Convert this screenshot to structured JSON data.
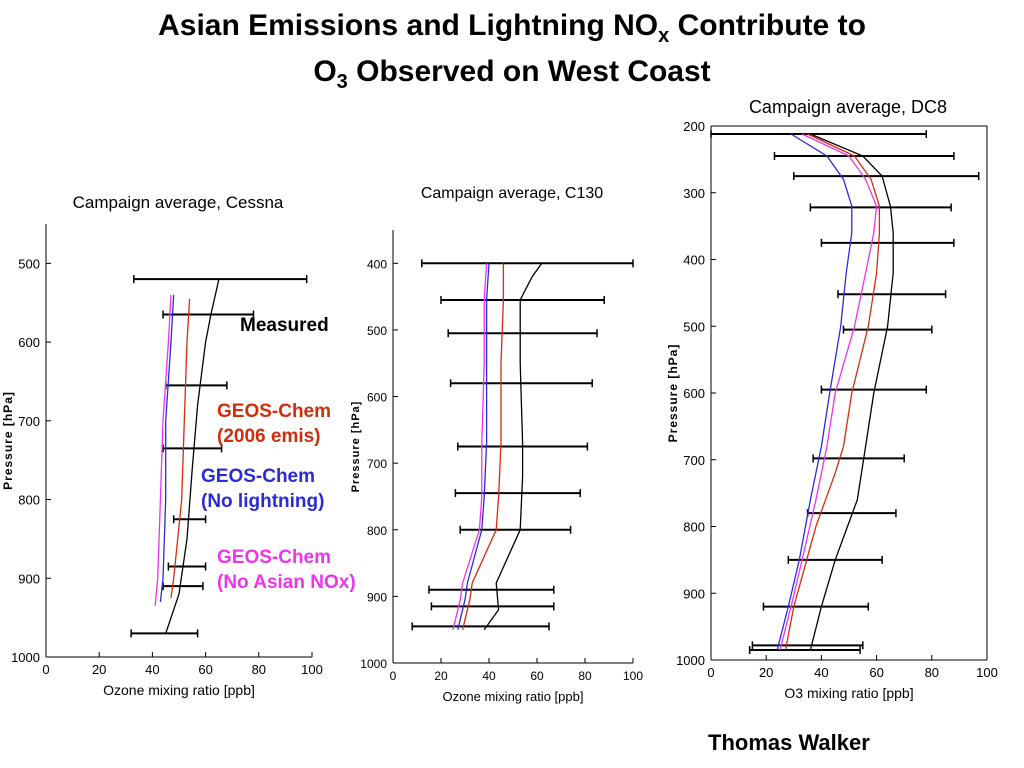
{
  "slide": {
    "title_part1": "Asian Emissions and Lightning NO",
    "title_sub1": "x",
    "title_part2": " Contribute to",
    "title_line2_a": "O",
    "title_sub2": "3",
    "title_line2_b": " Observed on West Coast",
    "author": "Thomas Walker"
  },
  "legend": {
    "measured": "Measured",
    "geos_emis_1": "GEOS-Chem",
    "geos_emis_2": "(2006 emis)",
    "no_lightning_1": "GEOS-Chem",
    "no_lightning_2": "(No lightning)",
    "no_asian_1": "GEOS-Chem",
    "no_asian_2": "(No Asian NOx)"
  },
  "colors": {
    "measured": "#000000",
    "geos_emis": "#d32c0c",
    "no_lightning": "#2b2bd6",
    "no_asian": "#ee33ee"
  },
  "chart_data": [
    {
      "id": "cessna",
      "type": "line",
      "title": "Campaign average, Cessna",
      "xlabel": "Ozone mixing ratio [ppb]",
      "ylabel": "Pressure [hPa]",
      "xlim": [
        0,
        100
      ],
      "ylim": [
        1000,
        450
      ],
      "xticks": [
        0,
        20,
        40,
        60,
        80,
        100
      ],
      "yticks": [
        500,
        600,
        700,
        800,
        900,
        1000
      ],
      "errorbars": [
        {
          "y": 520,
          "lo": 33,
          "hi": 98
        },
        {
          "y": 565,
          "lo": 44,
          "hi": 78
        },
        {
          "y": 655,
          "lo": 45,
          "hi": 68
        },
        {
          "y": 735,
          "lo": 44,
          "hi": 66
        },
        {
          "y": 825,
          "lo": 48,
          "hi": 60
        },
        {
          "y": 885,
          "lo": 46,
          "hi": 60
        },
        {
          "y": 910,
          "lo": 44,
          "hi": 59
        },
        {
          "y": 970,
          "lo": 32,
          "hi": 57
        }
      ],
      "series": [
        {
          "name": "Measured",
          "key": "measured",
          "points": [
            [
              65,
              520
            ],
            [
              62,
              565
            ],
            [
              60,
              600
            ],
            [
              57,
              680
            ],
            [
              55,
              760
            ],
            [
              53,
              850
            ],
            [
              50,
              920
            ],
            [
              45,
              970
            ]
          ]
        },
        {
          "name": "GEOS-Chem (2006 emis)",
          "key": "geos_emis",
          "points": [
            [
              54,
              545
            ],
            [
              53,
              600
            ],
            [
              52,
              700
            ],
            [
              51,
              800
            ],
            [
              48,
              900
            ],
            [
              47,
              925
            ]
          ]
        },
        {
          "name": "GEOS-Chem (No lightning)",
          "key": "no_lightning",
          "points": [
            [
              48,
              540
            ],
            [
              47,
              600
            ],
            [
              45,
              700
            ],
            [
              45,
              800
            ],
            [
              44,
              900
            ],
            [
              43,
              930
            ]
          ]
        },
        {
          "name": "GEOS-Chem (No Asian NOx)",
          "key": "no_asian",
          "points": [
            [
              47,
              540
            ],
            [
              46,
              600
            ],
            [
              44,
              700
            ],
            [
              43,
              800
            ],
            [
              42,
              900
            ],
            [
              41,
              935
            ]
          ]
        }
      ]
    },
    {
      "id": "c130",
      "type": "line",
      "title": "Campaign average, C130",
      "xlabel": "Ozone mixing ratio [ppb]",
      "ylabel": "Pressure [hPa]",
      "xlim": [
        0,
        100
      ],
      "ylim": [
        1000,
        350
      ],
      "xticks": [
        0,
        20,
        40,
        60,
        80,
        100
      ],
      "yticks": [
        400,
        500,
        600,
        700,
        800,
        900,
        1000
      ],
      "errorbars": [
        {
          "y": 400,
          "lo": 12,
          "hi": 100
        },
        {
          "y": 455,
          "lo": 20,
          "hi": 88
        },
        {
          "y": 505,
          "lo": 23,
          "hi": 85
        },
        {
          "y": 580,
          "lo": 24,
          "hi": 83
        },
        {
          "y": 675,
          "lo": 27,
          "hi": 81
        },
        {
          "y": 745,
          "lo": 26,
          "hi": 78
        },
        {
          "y": 800,
          "lo": 28,
          "hi": 74
        },
        {
          "y": 890,
          "lo": 15,
          "hi": 67
        },
        {
          "y": 915,
          "lo": 16,
          "hi": 67
        },
        {
          "y": 945,
          "lo": 8,
          "hi": 65
        }
      ],
      "series": [
        {
          "name": "Measured",
          "key": "measured",
          "points": [
            [
              62,
              400
            ],
            [
              58,
              420
            ],
            [
              53,
              455
            ],
            [
              53,
              550
            ],
            [
              54,
              670
            ],
            [
              54,
              720
            ],
            [
              53,
              800
            ],
            [
              43,
              880
            ],
            [
              44,
              920
            ],
            [
              38,
              950
            ]
          ]
        },
        {
          "name": "GEOS-Chem (2006 emis)",
          "key": "geos_emis",
          "points": [
            [
              46,
              400
            ],
            [
              46,
              455
            ],
            [
              45,
              550
            ],
            [
              45,
              670
            ],
            [
              44,
              750
            ],
            [
              43,
              800
            ],
            [
              33,
              880
            ],
            [
              32,
              905
            ],
            [
              29,
              950
            ]
          ]
        },
        {
          "name": "GEOS-Chem (No lightning)",
          "key": "no_lightning",
          "points": [
            [
              40,
              400
            ],
            [
              39,
              455
            ],
            [
              39,
              550
            ],
            [
              39,
              670
            ],
            [
              38,
              750
            ],
            [
              37,
              800
            ],
            [
              31,
              880
            ],
            [
              30,
              905
            ],
            [
              27,
              950
            ]
          ]
        },
        {
          "name": "GEOS-Chem (No Asian NOx)",
          "key": "no_asian",
          "points": [
            [
              39,
              400
            ],
            [
              38,
              455
            ],
            [
              38,
              550
            ],
            [
              37,
              670
            ],
            [
              37,
              750
            ],
            [
              36,
              800
            ],
            [
              29,
              880
            ],
            [
              28,
              905
            ],
            [
              25,
              950
            ]
          ]
        }
      ]
    },
    {
      "id": "dc8",
      "type": "line",
      "title": "Campaign average, DC8",
      "xlabel": "O3 mixing ratio [ppb]",
      "ylabel": "Pressure [hPa]",
      "xlim": [
        0,
        100
      ],
      "ylim": [
        1000,
        200
      ],
      "xticks": [
        0,
        20,
        40,
        60,
        80,
        100
      ],
      "yticks": [
        200,
        300,
        400,
        500,
        600,
        700,
        800,
        900,
        1000
      ],
      "errorbars": [
        {
          "y": 212,
          "lo": 0,
          "hi": 78
        },
        {
          "y": 245,
          "lo": 23,
          "hi": 88
        },
        {
          "y": 275,
          "lo": 30,
          "hi": 97
        },
        {
          "y": 322,
          "lo": 36,
          "hi": 87
        },
        {
          "y": 375,
          "lo": 40,
          "hi": 88
        },
        {
          "y": 452,
          "lo": 46,
          "hi": 85
        },
        {
          "y": 505,
          "lo": 48,
          "hi": 80
        },
        {
          "y": 595,
          "lo": 40,
          "hi": 78
        },
        {
          "y": 698,
          "lo": 37,
          "hi": 70
        },
        {
          "y": 780,
          "lo": 35,
          "hi": 67
        },
        {
          "y": 850,
          "lo": 28,
          "hi": 62
        },
        {
          "y": 920,
          "lo": 19,
          "hi": 57
        },
        {
          "y": 978,
          "lo": 15,
          "hi": 55
        },
        {
          "y": 985,
          "lo": 14,
          "hi": 54
        }
      ],
      "series": [
        {
          "name": "Measured",
          "key": "measured",
          "points": [
            [
              36,
              212
            ],
            [
              55,
              245
            ],
            [
              62,
              275
            ],
            [
              65,
              320
            ],
            [
              66,
              360
            ],
            [
              66,
              420
            ],
            [
              64,
              500
            ],
            [
              59,
              600
            ],
            [
              56,
              680
            ],
            [
              53,
              760
            ],
            [
              45,
              850
            ],
            [
              40,
              920
            ],
            [
              36,
              985
            ]
          ]
        },
        {
          "name": "GEOS-Chem (2006 emis)",
          "key": "geos_emis",
          "points": [
            [
              35,
              212
            ],
            [
              52,
              245
            ],
            [
              58,
              280
            ],
            [
              61,
              320
            ],
            [
              61,
              360
            ],
            [
              60,
              420
            ],
            [
              57,
              500
            ],
            [
              51,
              600
            ],
            [
              48,
              680
            ],
            [
              45,
              720
            ],
            [
              38,
              800
            ],
            [
              30,
              920
            ],
            [
              27,
              985
            ]
          ]
        },
        {
          "name": "GEOS-Chem (No lightning)",
          "key": "no_lightning",
          "points": [
            [
              29,
              212
            ],
            [
              42,
              245
            ],
            [
              48,
              280
            ],
            [
              51,
              320
            ],
            [
              51,
              360
            ],
            [
              49,
              420
            ],
            [
              47,
              500
            ],
            [
              43,
              600
            ],
            [
              40,
              680
            ],
            [
              36,
              760
            ],
            [
              32,
              850
            ],
            [
              28,
              920
            ],
            [
              24,
              985
            ]
          ]
        },
        {
          "name": "GEOS-Chem (No Asian NOx)",
          "key": "no_asian",
          "points": [
            [
              33,
              212
            ],
            [
              50,
              245
            ],
            [
              56,
              280
            ],
            [
              60,
              320
            ],
            [
              59,
              360
            ],
            [
              56,
              420
            ],
            [
              52,
              500
            ],
            [
              45,
              600
            ],
            [
              42,
              680
            ],
            [
              38,
              760
            ],
            [
              33,
              850
            ],
            [
              29,
              920
            ],
            [
              25,
              985
            ]
          ]
        }
      ]
    }
  ]
}
